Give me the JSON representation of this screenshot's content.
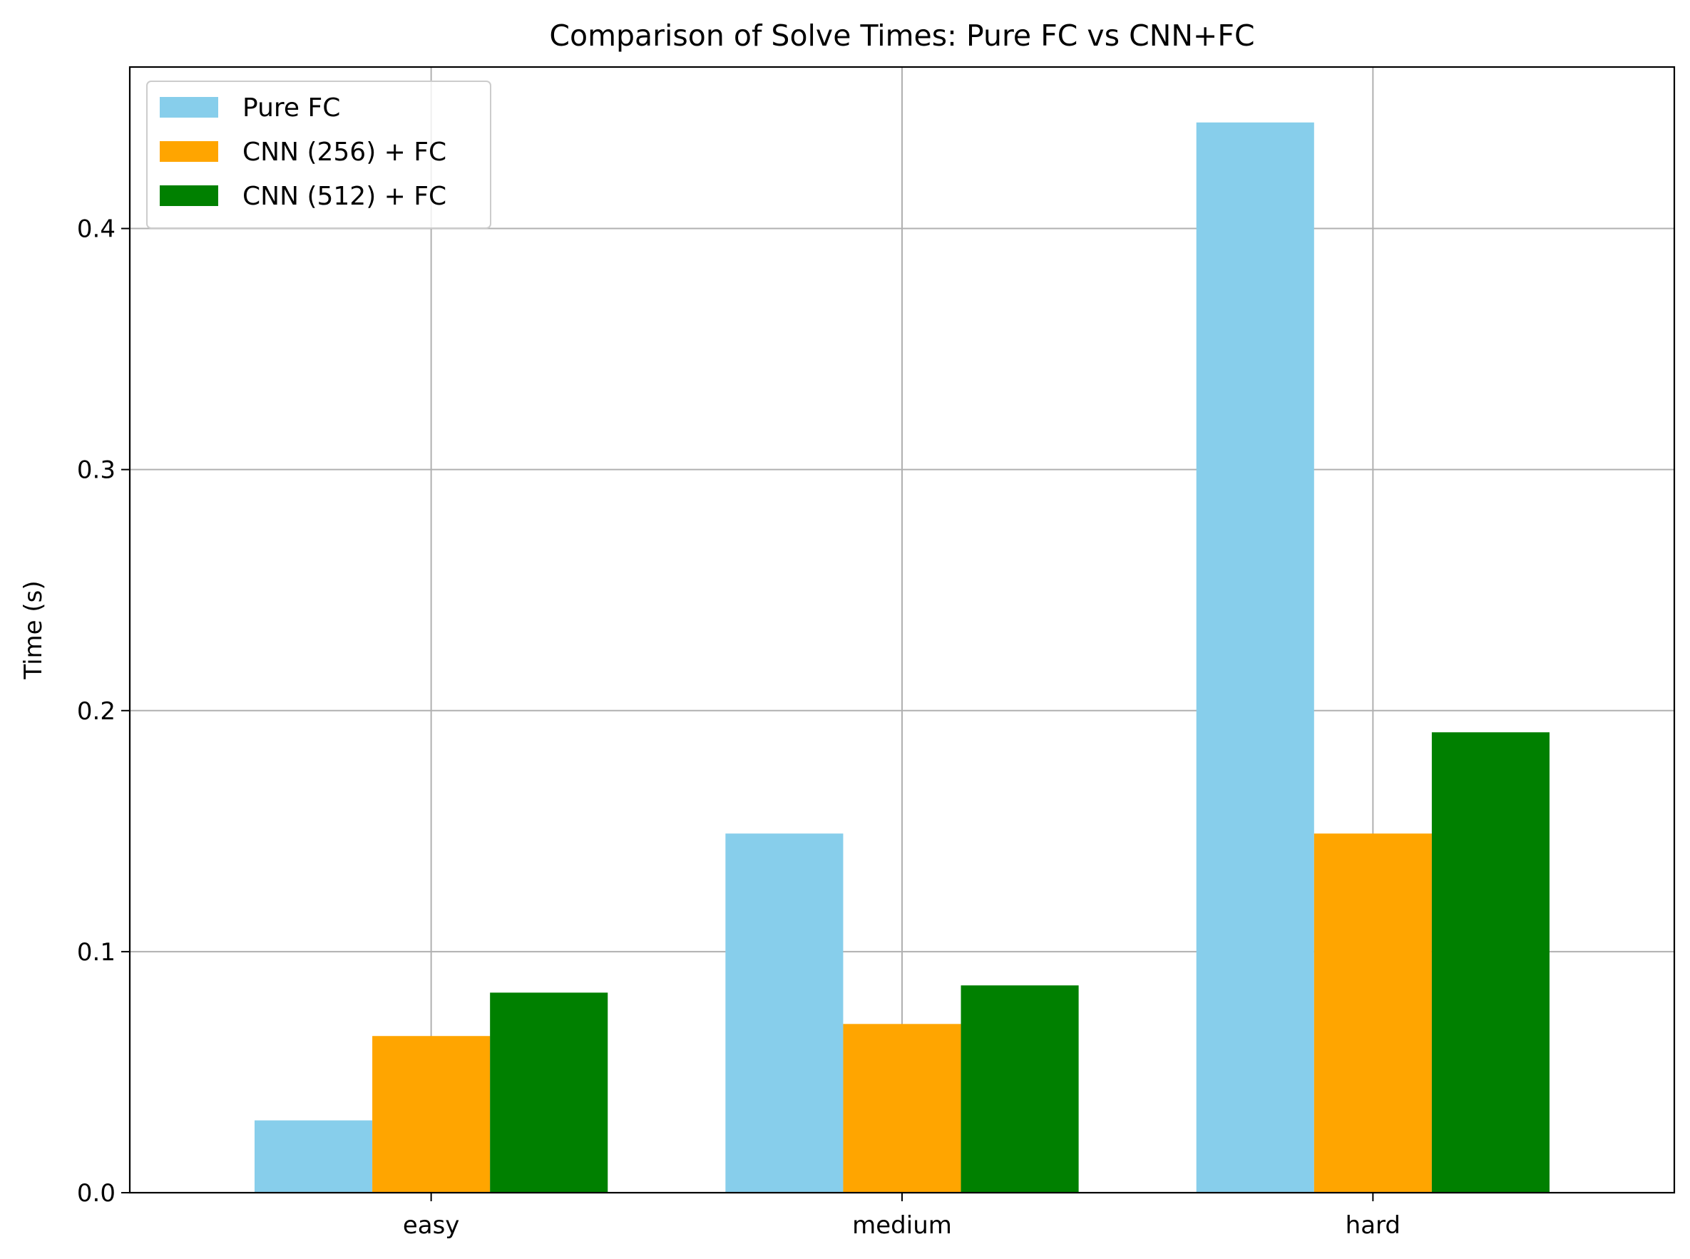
{
  "chart_data": {
    "type": "bar",
    "title": "Comparison of Solve Times: Pure FC vs CNN+FC",
    "xlabel": "",
    "ylabel": "Time (s)",
    "categories": [
      "easy",
      "medium",
      "hard"
    ],
    "series": [
      {
        "name": "Pure FC",
        "color": "#87CEEB",
        "values": [
          0.03,
          0.149,
          0.444
        ]
      },
      {
        "name": "CNN (256) + FC",
        "color": "#FFA500",
        "values": [
          0.065,
          0.07,
          0.149
        ]
      },
      {
        "name": "CNN (512) + FC",
        "color": "#008000",
        "values": [
          0.083,
          0.086,
          0.191
        ]
      }
    ],
    "ylim": [
      0,
      0.467
    ],
    "yticks": [
      0.0,
      0.1,
      0.2,
      0.3,
      0.4
    ],
    "ytick_labels": [
      "0.0",
      "0.1",
      "0.2",
      "0.3",
      "0.4"
    ],
    "grid": true,
    "legend_position": "top-left"
  }
}
